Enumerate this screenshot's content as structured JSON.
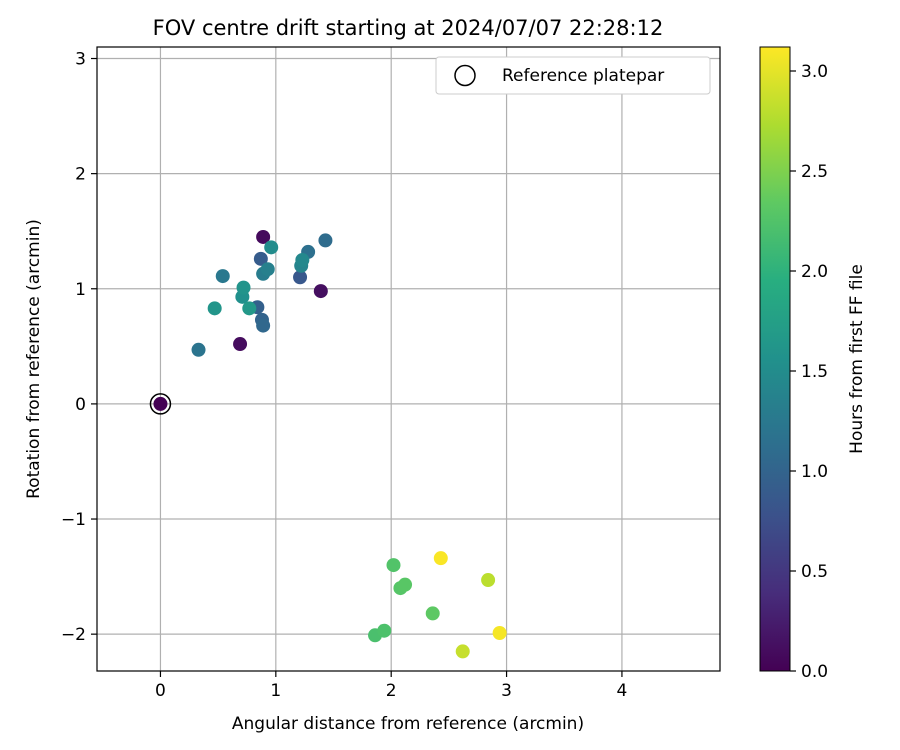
{
  "chart_data": {
    "type": "scatter",
    "title": "FOV centre drift starting at 2024/07/07 22:28:12",
    "xlabel": "Angular distance from reference (arcmin)",
    "ylabel": "Rotation from reference (arcmin)",
    "xlim": [
      -0.55,
      4.85
    ],
    "ylim": [
      -2.32,
      3.1
    ],
    "x_ticks": [
      0,
      1,
      2,
      3,
      4
    ],
    "x_tick_labels": [
      "0",
      "1",
      "2",
      "3",
      "4"
    ],
    "y_ticks": [
      -2,
      -1,
      0,
      1,
      2,
      3
    ],
    "y_tick_labels": [
      "−2",
      "−1",
      "0",
      "1",
      "2",
      "3"
    ],
    "grid": true,
    "legend": {
      "position": "top-right",
      "entries": [
        "Reference platepar"
      ]
    },
    "colorbar": {
      "label": "Hours from first FF file",
      "min": 0,
      "max": 3.12,
      "ticks": [
        0,
        0.5,
        1,
        1.5,
        2,
        2.5,
        3
      ],
      "tick_labels": [
        "0.0",
        "0.5",
        "1.0",
        "1.5",
        "2.0",
        "2.5",
        "3.0"
      ],
      "colormap": "viridis"
    },
    "reference_point": {
      "x": 0,
      "y": 0
    },
    "points": [
      {
        "x": 0.0,
        "y": 0.0,
        "h": 0.0
      },
      {
        "x": 0.89,
        "y": 1.45,
        "h": 0.08
      },
      {
        "x": 1.39,
        "y": 0.98,
        "h": 0.12
      },
      {
        "x": 0.69,
        "y": 0.52,
        "h": 0.1
      },
      {
        "x": 1.21,
        "y": 1.1,
        "h": 0.85
      },
      {
        "x": 0.87,
        "y": 1.26,
        "h": 0.9
      },
      {
        "x": 0.84,
        "y": 0.84,
        "h": 0.95
      },
      {
        "x": 0.88,
        "y": 0.73,
        "h": 1.0
      },
      {
        "x": 0.89,
        "y": 0.68,
        "h": 1.05
      },
      {
        "x": 1.43,
        "y": 1.42,
        "h": 1.1
      },
      {
        "x": 1.28,
        "y": 1.32,
        "h": 1.15
      },
      {
        "x": 0.33,
        "y": 0.47,
        "h": 1.2
      },
      {
        "x": 0.54,
        "y": 1.11,
        "h": 1.25
      },
      {
        "x": 0.89,
        "y": 1.13,
        "h": 1.3
      },
      {
        "x": 0.93,
        "y": 1.17,
        "h": 1.35
      },
      {
        "x": 1.22,
        "y": 1.2,
        "h": 1.4
      },
      {
        "x": 1.23,
        "y": 1.25,
        "h": 1.45
      },
      {
        "x": 0.96,
        "y": 1.36,
        "h": 1.5
      },
      {
        "x": 0.71,
        "y": 0.93,
        "h": 1.55
      },
      {
        "x": 0.72,
        "y": 1.01,
        "h": 1.6
      },
      {
        "x": 0.47,
        "y": 0.83,
        "h": 1.62
      },
      {
        "x": 0.77,
        "y": 0.83,
        "h": 1.65
      },
      {
        "x": 1.86,
        "y": -2.01,
        "h": 2.2
      },
      {
        "x": 1.94,
        "y": -1.97,
        "h": 2.22
      },
      {
        "x": 2.02,
        "y": -1.4,
        "h": 2.25
      },
      {
        "x": 2.08,
        "y": -1.6,
        "h": 2.28
      },
      {
        "x": 2.12,
        "y": -1.57,
        "h": 2.3
      },
      {
        "x": 2.36,
        "y": -1.82,
        "h": 2.33
      },
      {
        "x": 2.43,
        "y": -1.34,
        "h": 3.1
      },
      {
        "x": 2.84,
        "y": -1.53,
        "h": 2.8
      },
      {
        "x": 2.62,
        "y": -2.15,
        "h": 2.85
      },
      {
        "x": 2.94,
        "y": -1.99,
        "h": 3.08
      }
    ]
  }
}
